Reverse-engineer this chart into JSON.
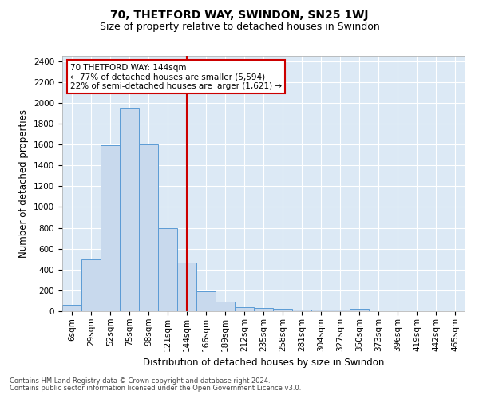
{
  "title": "70, THETFORD WAY, SWINDON, SN25 1WJ",
  "subtitle": "Size of property relative to detached houses in Swindon",
  "xlabel": "Distribution of detached houses by size in Swindon",
  "ylabel": "Number of detached properties",
  "footnote1": "Contains HM Land Registry data © Crown copyright and database right 2024.",
  "footnote2": "Contains public sector information licensed under the Open Government Licence v3.0.",
  "categories": [
    "6sqm",
    "29sqm",
    "52sqm",
    "75sqm",
    "98sqm",
    "121sqm",
    "144sqm",
    "166sqm",
    "189sqm",
    "212sqm",
    "235sqm",
    "258sqm",
    "281sqm",
    "304sqm",
    "327sqm",
    "350sqm",
    "373sqm",
    "396sqm",
    "419sqm",
    "442sqm",
    "465sqm"
  ],
  "values": [
    60,
    500,
    1590,
    1950,
    1600,
    800,
    470,
    195,
    90,
    35,
    28,
    22,
    18,
    15,
    13,
    25,
    0,
    0,
    0,
    0,
    0
  ],
  "bar_color": "#c8d9ed",
  "bar_edge_color": "#5b9bd5",
  "vline_x": 6,
  "vline_color": "#cc0000",
  "annotation_text": "70 THETFORD WAY: 144sqm\n← 77% of detached houses are smaller (5,594)\n22% of semi-detached houses are larger (1,621) →",
  "annotation_box_color": "#ffffff",
  "annotation_box_edge": "#cc0000",
  "ylim": [
    0,
    2450
  ],
  "yticks": [
    0,
    200,
    400,
    600,
    800,
    1000,
    1200,
    1400,
    1600,
    1800,
    2000,
    2200,
    2400
  ],
  "background_color": "#dce9f5",
  "title_fontsize": 10,
  "subtitle_fontsize": 9,
  "tick_fontsize": 7.5,
  "xlabel_fontsize": 8.5,
  "ylabel_fontsize": 8.5,
  "footnote_fontsize": 6.0,
  "annotation_fontsize": 7.5
}
